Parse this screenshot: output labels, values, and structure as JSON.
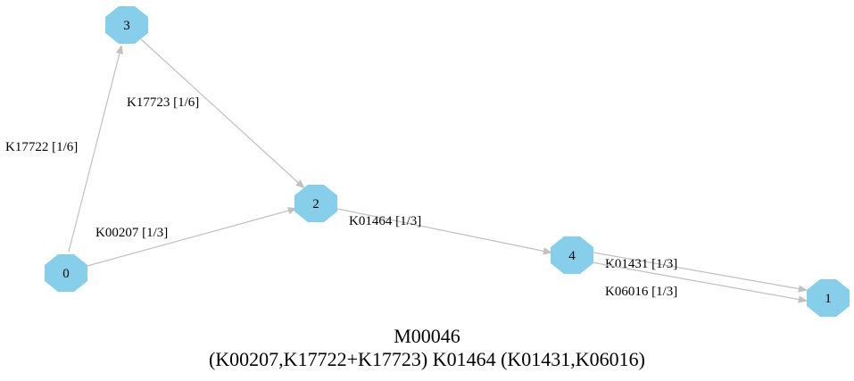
{
  "module": {
    "id": "M00046",
    "definition": "(K00207,K17722+K17723) K01464 (K01431,K06016)"
  },
  "colors": {
    "node_fill": "#87ceeb",
    "edge": "#c0c0c0"
  },
  "nodes": [
    {
      "id": "0",
      "label": "0"
    },
    {
      "id": "1",
      "label": "1"
    },
    {
      "id": "2",
      "label": "2"
    },
    {
      "id": "3",
      "label": "3"
    },
    {
      "id": "4",
      "label": "4"
    }
  ],
  "edges": [
    {
      "from": "0",
      "to": "3",
      "label": "K17722 [1/6]"
    },
    {
      "from": "3",
      "to": "2",
      "label": "K17723 [1/6]"
    },
    {
      "from": "0",
      "to": "2",
      "label": "K00207 [1/3]"
    },
    {
      "from": "2",
      "to": "4",
      "label": "K01464 [1/3]"
    },
    {
      "from": "4",
      "to": "1",
      "label": "K01431 [1/3]"
    },
    {
      "from": "4",
      "to": "1",
      "label": "K06016 [1/3]"
    }
  ]
}
